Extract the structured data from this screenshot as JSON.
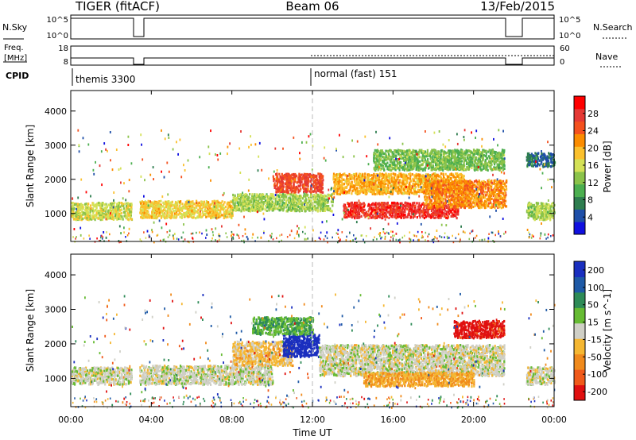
{
  "header": {
    "radar": "TIGER (fitACF)",
    "beam": "Beam 06",
    "date": "13/Feb/2015"
  },
  "panels": {
    "nsky": {
      "left_label": "N.Sky",
      "right_label": "N.Search",
      "left_ticks": [
        "10^5",
        "10^0"
      ],
      "right_ticks": [
        "10^5",
        "10^0"
      ]
    },
    "freq": {
      "left_label_1": "Freq.",
      "left_label_2": "[MHz]",
      "left_ticks": [
        "18",
        "8"
      ],
      "right_label": "Nave",
      "right_ticks": [
        "60",
        "0"
      ]
    },
    "cpid": {
      "label": "CPID",
      "modes": [
        "themis 3300",
        "normal (fast) 151"
      ]
    }
  },
  "axes": {
    "ylabel": "Slant Range [km]",
    "xlabel": "Time UT",
    "y_ticks": [
      "1000",
      "2000",
      "3000",
      "4000"
    ],
    "x_ticks": [
      "00:00",
      "04:00",
      "08:00",
      "12:00",
      "16:00",
      "20:00",
      "00:00"
    ]
  },
  "colorbars": {
    "power": {
      "label": "Power [dB]",
      "ticks": [
        "4",
        "8",
        "12",
        "16",
        "20",
        "24",
        "28"
      ],
      "colors": [
        "#1010e0",
        "#1f4fa8",
        "#2e7d4f",
        "#4caf50",
        "#8bc34a",
        "#d4e157",
        "#fbc02d",
        "#fb8c00",
        "#f4511e",
        "#e53935",
        "#ff0000"
      ]
    },
    "velocity": {
      "label": "Velocity [m s^-1]",
      "ticks": [
        "200",
        "100",
        "50",
        "15",
        "-15",
        "-50",
        "-100",
        "-200"
      ],
      "colors": [
        "#1a2fbf",
        "#1f5aa6",
        "#2e8b57",
        "#66bb33",
        "#cfcfc6",
        "#f5b732",
        "#f08a1c",
        "#f05a1a",
        "#e01010"
      ]
    }
  },
  "chart_data": [
    {
      "type": "heatmap",
      "name_hint": "power",
      "xlabel": "Time UT",
      "ylabel": "Slant Range [km]",
      "x_range_hours": [
        0,
        24
      ],
      "ylim": [
        180,
        4600
      ],
      "colorbar_label": "Power [dB]",
      "colorbar_range": [
        0,
        32
      ],
      "data_gaps_hours": [
        [
          3.0,
          3.4
        ],
        [
          21.6,
          22.6
        ]
      ],
      "regions": [
        {
          "t": [
            0.0,
            3.0
          ],
          "r": [
            850,
            1350
          ],
          "value": 16
        },
        {
          "t": [
            3.4,
            8.0
          ],
          "r": [
            900,
            1400
          ],
          "value": 18
        },
        {
          "t": [
            8.0,
            13.0
          ],
          "r": [
            1100,
            1600
          ],
          "value": 14
        },
        {
          "t": [
            10.0,
            12.5
          ],
          "r": [
            1650,
            2200
          ],
          "value": 26
        },
        {
          "t": [
            13.0,
            19.5
          ],
          "r": [
            1600,
            2200
          ],
          "value": 20
        },
        {
          "t": [
            13.5,
            19.2
          ],
          "r": [
            900,
            1350
          ],
          "value": 28
        },
        {
          "t": [
            17.5,
            21.6
          ],
          "r": [
            1200,
            2000
          ],
          "value": 22
        },
        {
          "t": [
            15.0,
            21.5
          ],
          "r": [
            2300,
            2900
          ],
          "value": 12
        },
        {
          "t": [
            22.6,
            24.0
          ],
          "r": [
            850,
            1350
          ],
          "value": 14
        },
        {
          "t": [
            22.6,
            24.0
          ],
          "r": [
            2400,
            2800
          ],
          "value": 6
        }
      ]
    },
    {
      "type": "heatmap",
      "name_hint": "velocity",
      "xlabel": "Time UT",
      "ylabel": "Slant Range [km]",
      "x_range_hours": [
        0,
        24
      ],
      "ylim": [
        180,
        4600
      ],
      "colorbar_label": "Velocity [m s^-1]",
      "colorbar_range": [
        -200,
        200
      ],
      "data_gaps_hours": [
        [
          3.0,
          3.4
        ],
        [
          21.6,
          22.6
        ]
      ],
      "regions": [
        {
          "t": [
            0.0,
            3.0
          ],
          "r": [
            850,
            1350
          ],
          "value": 0
        },
        {
          "t": [
            3.4,
            10.0
          ],
          "r": [
            850,
            1400
          ],
          "value": 0
        },
        {
          "t": [
            8.0,
            11.0
          ],
          "r": [
            1400,
            2100
          ],
          "value": -40
        },
        {
          "t": [
            10.5,
            12.3
          ],
          "r": [
            1650,
            2300
          ],
          "value": 200
        },
        {
          "t": [
            9.0,
            12.0
          ],
          "r": [
            2300,
            2800
          ],
          "value": 60
        },
        {
          "t": [
            12.3,
            21.5
          ],
          "r": [
            1100,
            2000
          ],
          "value": 0
        },
        {
          "t": [
            14.5,
            20.0
          ],
          "r": [
            800,
            1200
          ],
          "value": -60
        },
        {
          "t": [
            19.0,
            21.5
          ],
          "r": [
            2200,
            2700
          ],
          "value": -180
        },
        {
          "t": [
            22.6,
            24.0
          ],
          "r": [
            850,
            1350
          ],
          "value": 0
        }
      ]
    }
  ]
}
